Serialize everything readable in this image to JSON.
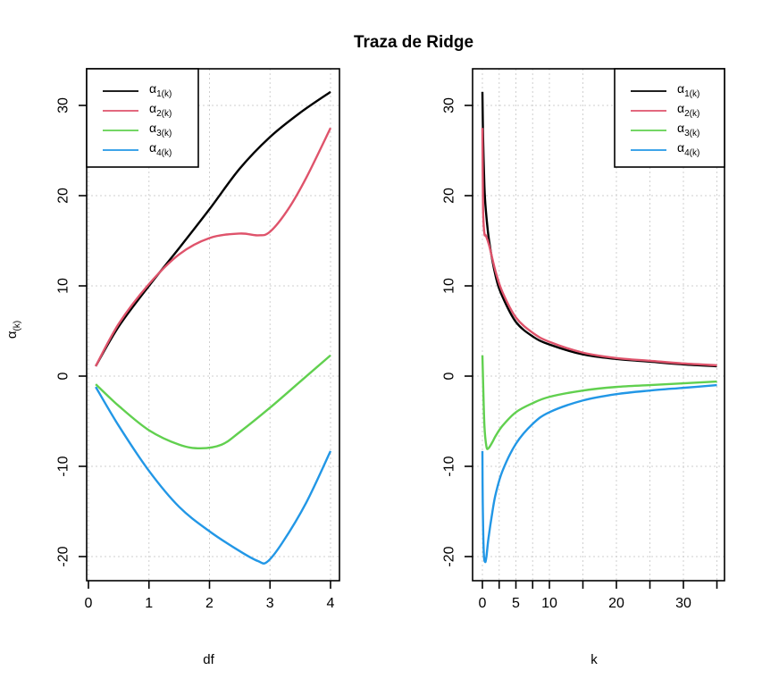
{
  "title": "Traza de Ridge",
  "legend_entries": [
    {
      "base": "α",
      "sub": "1(k)",
      "color": "#000000"
    },
    {
      "base": "α",
      "sub": "2(k)",
      "color": "#DF536B"
    },
    {
      "base": "α",
      "sub": "3(k)",
      "color": "#61D04F"
    },
    {
      "base": "α",
      "sub": "4(k)",
      "color": "#2297E6"
    }
  ],
  "ylabel": {
    "base": "α",
    "sub": "(k)"
  },
  "chart_data": [
    {
      "type": "line",
      "xlabel": "df",
      "xlim": [
        0.1,
        4.0
      ],
      "ylim": [
        -21,
        32
      ],
      "xticks": [
        0,
        1,
        2,
        3,
        4
      ],
      "yticks": [
        -20,
        -10,
        0,
        10,
        20,
        30
      ],
      "grid": true,
      "legend_position": "top-left",
      "series": [
        {
          "color": "#000000",
          "x": [
            0.12,
            0.5,
            1.0,
            1.5,
            2.0,
            2.5,
            3.0,
            3.5,
            4.0
          ],
          "y": [
            1.1,
            5.5,
            10.0,
            14.2,
            18.5,
            23.0,
            26.5,
            29.2,
            31.5
          ]
        },
        {
          "color": "#DF536B",
          "x": [
            0.12,
            0.5,
            1.0,
            1.5,
            2.0,
            2.5,
            2.8,
            3.0,
            3.3,
            3.6,
            4.0
          ],
          "y": [
            1.1,
            5.8,
            10.2,
            13.5,
            15.3,
            15.8,
            15.6,
            16.0,
            18.5,
            22.0,
            27.5
          ]
        },
        {
          "color": "#61D04F",
          "x": [
            0.12,
            0.5,
            1.0,
            1.5,
            1.85,
            2.2,
            2.5,
            3.0,
            3.5,
            4.0
          ],
          "y": [
            -0.9,
            -3.3,
            -6.0,
            -7.6,
            -8.0,
            -7.6,
            -6.2,
            -3.5,
            -0.6,
            2.3
          ]
        },
        {
          "color": "#2297E6",
          "x": [
            0.12,
            0.5,
            1.0,
            1.5,
            2.0,
            2.5,
            2.8,
            2.95,
            3.2,
            3.6,
            4.0
          ],
          "y": [
            -1.2,
            -5.5,
            -10.5,
            -14.5,
            -17.2,
            -19.4,
            -20.5,
            -20.6,
            -18.5,
            -14.0,
            -8.3
          ]
        }
      ]
    },
    {
      "type": "line",
      "xlabel": "k",
      "xlim": [
        0,
        35
      ],
      "ylim": [
        -21,
        32
      ],
      "xticks": [
        0,
        5,
        10,
        20,
        30
      ],
      "xticks_minor": [
        2.5,
        7.5,
        15,
        25,
        35
      ],
      "yticks": [
        -20,
        -10,
        0,
        10,
        20,
        30
      ],
      "grid": true,
      "legend_position": "top-right",
      "series": [
        {
          "color": "#000000",
          "x": [
            0,
            0.1,
            0.3,
            0.5,
            1,
            2,
            3,
            5,
            7.5,
            10,
            15,
            20,
            25,
            30,
            35
          ],
          "y": [
            31.5,
            26.5,
            21.0,
            18.5,
            15.0,
            11.0,
            8.8,
            6.0,
            4.4,
            3.5,
            2.4,
            1.9,
            1.6,
            1.3,
            1.1
          ]
        },
        {
          "color": "#DF536B",
          "x": [
            0,
            0.1,
            0.3,
            0.5,
            1,
            2,
            3,
            5,
            7.5,
            10,
            15,
            20,
            25,
            30,
            35
          ],
          "y": [
            27.5,
            18.5,
            15.8,
            15.6,
            14.5,
            11.5,
            9.3,
            6.5,
            4.8,
            3.8,
            2.6,
            2.0,
            1.7,
            1.4,
            1.2
          ]
        },
        {
          "color": "#61D04F",
          "x": [
            0,
            0.1,
            0.3,
            0.6,
            0.9,
            1.5,
            2,
            3,
            5,
            7.5,
            10,
            15,
            20,
            25,
            30,
            35
          ],
          "y": [
            2.3,
            -0.6,
            -5.5,
            -7.8,
            -8.0,
            -7.3,
            -6.6,
            -5.5,
            -4.0,
            -3.0,
            -2.3,
            -1.6,
            -1.2,
            -1.0,
            -0.8,
            -0.6
          ]
        },
        {
          "color": "#2297E6",
          "x": [
            0,
            0.05,
            0.2,
            0.4,
            0.6,
            0.9,
            1.5,
            2,
            3,
            5,
            7.5,
            10,
            15,
            20,
            25,
            30,
            35
          ],
          "y": [
            -8.3,
            -14.0,
            -19.5,
            -20.6,
            -20.0,
            -18.0,
            -15.0,
            -13.0,
            -10.5,
            -7.5,
            -5.3,
            -4.0,
            -2.7,
            -2.0,
            -1.6,
            -1.3,
            -1.0
          ]
        }
      ]
    }
  ]
}
